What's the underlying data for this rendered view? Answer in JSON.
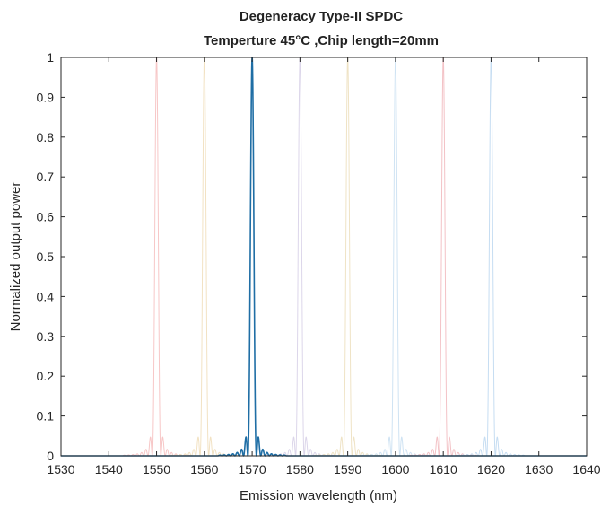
{
  "chart_data": {
    "type": "line",
    "title": "Degeneracy Type-II SPDC",
    "subtitle": "Temperture 45°C ,Chip length=20mm",
    "xlabel": "Emission wavelength (nm)",
    "ylabel": "Normalized output power",
    "xlim": [
      1530,
      1640
    ],
    "ylim": [
      0,
      1
    ],
    "xticks": [
      1530,
      1540,
      1550,
      1560,
      1570,
      1580,
      1590,
      1600,
      1610,
      1620,
      1630,
      1640
    ],
    "yticks": [
      0,
      0.1,
      0.2,
      0.3,
      0.4,
      0.5,
      0.6,
      0.7,
      0.8,
      0.9,
      1
    ],
    "grid": false,
    "peak_shape": "sinc^2",
    "peak_halfwidth_nm": 0.9,
    "series": [
      {
        "center": 1550,
        "peak": 1,
        "color": "#f7c7c7",
        "highlight": false
      },
      {
        "center": 1560,
        "peak": 1,
        "color": "#f2e2c3",
        "highlight": false
      },
      {
        "center": 1570,
        "peak": 1,
        "color": "#1f6ea5",
        "highlight": true
      },
      {
        "center": 1580,
        "peak": 1,
        "color": "#dcd6ea",
        "highlight": false
      },
      {
        "center": 1590,
        "peak": 1,
        "color": "#efe3c5",
        "highlight": false
      },
      {
        "center": 1600,
        "peak": 1,
        "color": "#cfe3f3",
        "highlight": false
      },
      {
        "center": 1610,
        "peak": 1,
        "color": "#f3c2c6",
        "highlight": false
      },
      {
        "center": 1620,
        "peak": 1,
        "color": "#c6ddf2",
        "highlight": false
      }
    ]
  }
}
